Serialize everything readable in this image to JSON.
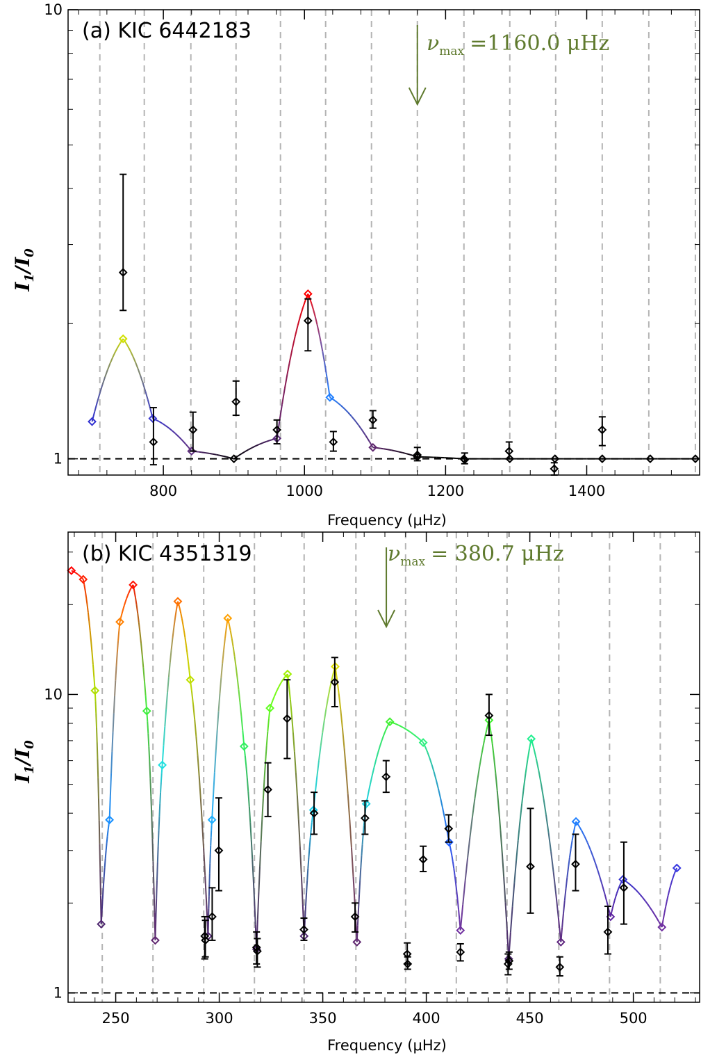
{
  "colors": {
    "arrow": "#5f7a2e",
    "grid": "#b4b4b4",
    "data": "#000000"
  },
  "chart_data": [
    {
      "type": "scatter",
      "panel_label": "(a) KIC 6442183",
      "numax_symbol": "ν",
      "numax_sub": "max",
      "numax_text": "=1160.0 μHz",
      "numax": 1160.0,
      "xlabel": "Frequency (μHz)",
      "ylabel_main": "I",
      "ylabel_sub1": "1",
      "ylabel_slash": "/I",
      "ylabel_sub2": "0",
      "log_y": true,
      "xlim": [
        665,
        1560
      ],
      "ylim": [
        0.92,
        10
      ],
      "xticks": [
        800,
        1000,
        1200,
        1400
      ],
      "yticks": [
        1,
        10
      ],
      "ytick_labels": [
        "1",
        "10"
      ],
      "grid_x": [
        710,
        773,
        839,
        903,
        966,
        1030,
        1095,
        1160,
        1226,
        1291,
        1356,
        1422,
        1488,
        1554
      ],
      "model": {
        "x": [
          699,
          743,
          785,
          840,
          900,
          961,
          1005,
          1036,
          1097,
          1160,
          1226,
          1291,
          1355,
          1422,
          1490,
          1554
        ],
        "y": [
          1.21,
          1.85,
          1.23,
          1.04,
          1.0,
          1.11,
          2.33,
          1.37,
          1.06,
          1.01,
          1.0,
          1.0,
          1.0,
          1.0,
          1.0,
          1.0
        ],
        "colors": [
          "#3030d0",
          "#d0e000",
          "#3838d0",
          "#603080",
          "#000000",
          "#582878",
          "#ff0000",
          "#2080ff",
          "#602870",
          "#000000",
          "#000000",
          "#000000",
          "#000000",
          "#000000",
          "#000000",
          "#000000"
        ]
      },
      "observed": [
        {
          "x": 743,
          "y": 2.6,
          "lo": 2.14,
          "hi": 4.3
        },
        {
          "x": 786,
          "y": 1.09,
          "lo": 0.97,
          "hi": 1.3
        },
        {
          "x": 842,
          "y": 1.16,
          "lo": 1.04,
          "hi": 1.27
        },
        {
          "x": 903,
          "y": 1.34,
          "lo": 1.25,
          "hi": 1.49
        },
        {
          "x": 961,
          "y": 1.16,
          "lo": 1.08,
          "hi": 1.22
        },
        {
          "x": 1005,
          "y": 2.03,
          "lo": 1.74,
          "hi": 2.27
        },
        {
          "x": 1041,
          "y": 1.09,
          "lo": 1.04,
          "hi": 1.15
        },
        {
          "x": 1097,
          "y": 1.22,
          "lo": 1.17,
          "hi": 1.28
        },
        {
          "x": 1160,
          "y": 1.02,
          "lo": 0.99,
          "hi": 1.06
        },
        {
          "x": 1227,
          "y": 0.995,
          "lo": 0.975,
          "hi": 1.03
        },
        {
          "x": 1290,
          "y": 1.04,
          "lo": 1.0,
          "hi": 1.09
        },
        {
          "x": 1354,
          "y": 0.95,
          "lo": 0.92,
          "hi": 0.98
        },
        {
          "x": 1422,
          "y": 1.16,
          "lo": 1.07,
          "hi": 1.24
        }
      ]
    },
    {
      "type": "scatter",
      "panel_label": "(b) KIC 4351319",
      "numax_symbol": "ν",
      "numax_sub": "max",
      "numax_text": "= 380.7 μHz",
      "numax": 380.7,
      "xlabel": "Frequency (μHz)",
      "ylabel_main": "I",
      "ylabel_sub1": "1",
      "ylabel_slash": "/I",
      "ylabel_sub2": "0",
      "log_y": true,
      "xlim": [
        227,
        532
      ],
      "ylim": [
        0.93,
        35
      ],
      "xticks": [
        250,
        300,
        350,
        400,
        450,
        500
      ],
      "yticks": [
        1,
        10
      ],
      "ytick_labels": [
        "1",
        "10"
      ],
      "grid_x": [
        243.5,
        268,
        292.5,
        317,
        341,
        366,
        390,
        414.5,
        439,
        464,
        488.5,
        513
      ],
      "model": {
        "x": [
          228.6,
          234.3,
          240,
          243,
          247,
          252,
          258.4,
          265,
          269.1,
          272.5,
          280,
          286,
          294.6,
          296.5,
          304.1,
          312,
          318,
          324.5,
          333,
          341,
          345.5,
          356,
          366.5,
          371,
          382.4,
          398.5,
          411,
          416.5,
          430.3,
          439.8,
          450.7,
          465,
          472.3,
          489,
          495,
          513.8,
          521
        ],
        "y": [
          26,
          24.3,
          10.3,
          1.7,
          3.8,
          17.5,
          23.3,
          8.8,
          1.5,
          5.8,
          20.5,
          11.2,
          1.55,
          3.8,
          18,
          6.7,
          1.4,
          9,
          11.7,
          1.55,
          4.1,
          12.4,
          1.48,
          4.3,
          8.1,
          6.9,
          3.2,
          1.62,
          8.2,
          1.3,
          7.1,
          1.48,
          3.75,
          1.8,
          2.4,
          1.66,
          2.62
        ],
        "colors": [
          "#ff0000",
          "#ff2000",
          "#b0e000",
          "#502870",
          "#1890ff",
          "#ff8000",
          "#ff1000",
          "#40f040",
          "#602870",
          "#20e0e0",
          "#ff7000",
          "#c0e000",
          "#502870",
          "#20b0ff",
          "#ffa000",
          "#30f060",
          "#502870",
          "#60ff20",
          "#a0f000",
          "#502870",
          "#10d0f0",
          "#e0e000",
          "#602870",
          "#20d0e0",
          "#40f030",
          "#30f080",
          "#2060ff",
          "#7030a0",
          "#40f030",
          "#502870",
          "#20f090",
          "#602880",
          "#2080ff",
          "#6028a0",
          "#3030d0",
          "#7030a0",
          "#3838e0"
        ]
      },
      "observed": [
        {
          "x": 293,
          "y": 1.55,
          "lo": 1.3,
          "hi": 1.8
        },
        {
          "x": 293.3,
          "y": 1.5,
          "lo": 1.32,
          "hi": 1.75
        },
        {
          "x": 296.6,
          "y": 1.8,
          "lo": 1.5,
          "hi": 2.25
        },
        {
          "x": 299.8,
          "y": 3.0,
          "lo": 2.2,
          "hi": 4.5
        },
        {
          "x": 318,
          "y": 1.42,
          "lo": 1.25,
          "hi": 1.6
        },
        {
          "x": 318.4,
          "y": 1.38,
          "lo": 1.22,
          "hi": 1.52
        },
        {
          "x": 323.5,
          "y": 4.8,
          "lo": 3.9,
          "hi": 5.9
        },
        {
          "x": 332.8,
          "y": 8.3,
          "lo": 6.1,
          "hi": 11.2
        },
        {
          "x": 340.9,
          "y": 1.63,
          "lo": 1.5,
          "hi": 1.78
        },
        {
          "x": 345.8,
          "y": 4.0,
          "lo": 3.4,
          "hi": 4.7
        },
        {
          "x": 355.8,
          "y": 11.0,
          "lo": 9.1,
          "hi": 13.3
        },
        {
          "x": 365.6,
          "y": 1.8,
          "lo": 1.6,
          "hi": 2.0
        },
        {
          "x": 370.4,
          "y": 3.85,
          "lo": 3.4,
          "hi": 4.4
        },
        {
          "x": 380.6,
          "y": 5.3,
          "lo": 4.7,
          "hi": 6.0
        },
        {
          "x": 390.8,
          "y": 1.35,
          "lo": 1.25,
          "hi": 1.47
        },
        {
          "x": 391,
          "y": 1.25,
          "lo": 1.2,
          "hi": 1.32
        },
        {
          "x": 398.5,
          "y": 2.8,
          "lo": 2.55,
          "hi": 3.1
        },
        {
          "x": 410.8,
          "y": 3.55,
          "lo": 3.2,
          "hi": 3.95
        },
        {
          "x": 416.5,
          "y": 1.37,
          "lo": 1.28,
          "hi": 1.46
        },
        {
          "x": 430.3,
          "y": 8.5,
          "lo": 7.3,
          "hi": 10.0
        },
        {
          "x": 439.5,
          "y": 1.25,
          "lo": 1.15,
          "hi": 1.35
        },
        {
          "x": 440,
          "y": 1.28,
          "lo": 1.2,
          "hi": 1.37
        },
        {
          "x": 450.3,
          "y": 2.65,
          "lo": 1.85,
          "hi": 4.15
        },
        {
          "x": 464.5,
          "y": 1.22,
          "lo": 1.14,
          "hi": 1.32
        },
        {
          "x": 472.1,
          "y": 2.7,
          "lo": 2.2,
          "hi": 3.4
        },
        {
          "x": 487.7,
          "y": 1.6,
          "lo": 1.35,
          "hi": 1.95
        },
        {
          "x": 495.4,
          "y": 2.25,
          "lo": 1.7,
          "hi": 3.2
        }
      ]
    }
  ]
}
